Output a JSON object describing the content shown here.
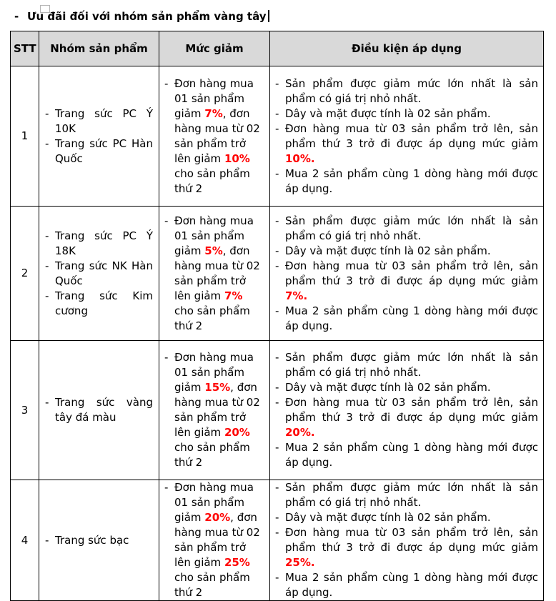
{
  "page": {
    "title_bullet": "-",
    "title": "Ưu đãi đối với nhóm sản phẩm vàng tây"
  },
  "colors": {
    "accent_red": "#ff0000",
    "header_bg": "#d9d9d9",
    "border": "#000000"
  },
  "table": {
    "bullet_char": "-",
    "columns": [
      "STT",
      "Nhóm sản phẩm",
      "Mức giảm",
      "Điều kiện áp dụng"
    ],
    "rows": [
      {
        "stt": "1",
        "groups": [
          "Trang sức PC Ý 10K",
          "Trang sức PC Hàn Quốc"
        ],
        "discount": [
          {
            "t": "Đơn hàng mua 01 sản phẩm giảm "
          },
          {
            "t": "7%",
            "red": true
          },
          {
            "t": ", đơn hàng mua từ 02 sản phẩm trở lên giảm "
          },
          {
            "t": "10%",
            "red": true
          },
          {
            "t": " cho sản phẩm thứ 2"
          }
        ],
        "conditions": [
          [
            {
              "t": "Sản phẩm được giảm mức lớn nhất là sản phẩm có giá trị nhỏ nhất."
            }
          ],
          [
            {
              "t": "Dây và mặt được tính là 02 sản phẩm."
            }
          ],
          [
            {
              "t": "Đơn hàng mua từ 03 sản phẩm trở lên, sản phẩm thứ 3 trở đi được áp dụng mức giảm "
            },
            {
              "t": "10%.",
              "red": true
            }
          ],
          [
            {
              "t": "Mua 2 sản phẩm cùng 1 dòng hàng mới được áp dụng."
            }
          ]
        ]
      },
      {
        "stt": "2",
        "groups": [
          "Trang sức PC Ý 18K",
          "Trang sức NK Hàn Quốc",
          "Trang sức Kim cương"
        ],
        "discount": [
          {
            "t": "Đơn hàng mua 01 sản phẩm giảm "
          },
          {
            "t": "5%",
            "red": true
          },
          {
            "t": ", đơn hàng mua từ 02 sản phẩm trở lên giảm "
          },
          {
            "t": "7%",
            "red": true
          },
          {
            "t": " cho sản phẩm thứ 2"
          }
        ],
        "conditions": [
          [
            {
              "t": "Sản phẩm được giảm mức lớn nhất là sản phẩm có giá trị nhỏ nhất."
            }
          ],
          [
            {
              "t": "Dây và mặt được tính là 02 sản phẩm."
            }
          ],
          [
            {
              "t": "Đơn hàng mua từ 03 sản phẩm trở lên, sản phẩm thứ 3 trở đi được áp dụng mức giảm "
            },
            {
              "t": "7%.",
              "red": true
            }
          ],
          [
            {
              "t": "Mua 2 sản phẩm cùng 1 dòng hàng mới được áp dụng."
            }
          ]
        ]
      },
      {
        "stt": "3",
        "groups": [
          "Trang sức vàng tây đá màu"
        ],
        "discount": [
          {
            "t": "Đơn hàng mua 01 sản phẩm giảm "
          },
          {
            "t": "15%",
            "red": true
          },
          {
            "t": ", đơn hàng mua từ 02 sản phẩm trở lên giảm "
          },
          {
            "t": "20%",
            "red": true
          },
          {
            "t": " cho sản phẩm thứ 2"
          }
        ],
        "conditions": [
          [
            {
              "t": "Sản phẩm được giảm mức lớn nhất là sản phẩm có giá trị nhỏ nhất."
            }
          ],
          [
            {
              "t": "Dây và mặt được tính là 02 sản phẩm."
            }
          ],
          [
            {
              "t": "Đơn hàng mua từ 03 sản phẩm trở lên, sản phẩm thứ 3 trở đi được áp dụng mức giảm "
            },
            {
              "t": "20%.",
              "red": true
            }
          ],
          [
            {
              "t": "Mua 2 sản phẩm cùng 1 dòng hàng mới được áp dụng."
            }
          ]
        ]
      },
      {
        "stt": "4",
        "groups": [
          "Trang sức bạc"
        ],
        "discount": [
          {
            "t": "Đơn hàng mua 01 sản phẩm giảm "
          },
          {
            "t": "20%",
            "red": true
          },
          {
            "t": ", đơn hàng mua từ 02 sản phẩm trở lên giảm "
          },
          {
            "t": "25%",
            "red": true
          },
          {
            "t": " cho sản phẩm thứ 2"
          }
        ],
        "conditions": [
          [
            {
              "t": "Sản phẩm được giảm mức lớn nhất là sản phẩm có giá trị nhỏ nhất."
            }
          ],
          [
            {
              "t": "Dây và mặt được tính là 02 sản phẩm."
            }
          ],
          [
            {
              "t": "Đơn hàng mua từ 03 sản phẩm trở lên, sản phẩm thứ 3 trở đi được áp dụng mức giảm "
            },
            {
              "t": "25%.",
              "red": true
            }
          ],
          [
            {
              "t": "Mua 2 sản phẩm cùng 1 dòng hàng mới được áp dụng."
            }
          ]
        ]
      }
    ]
  }
}
